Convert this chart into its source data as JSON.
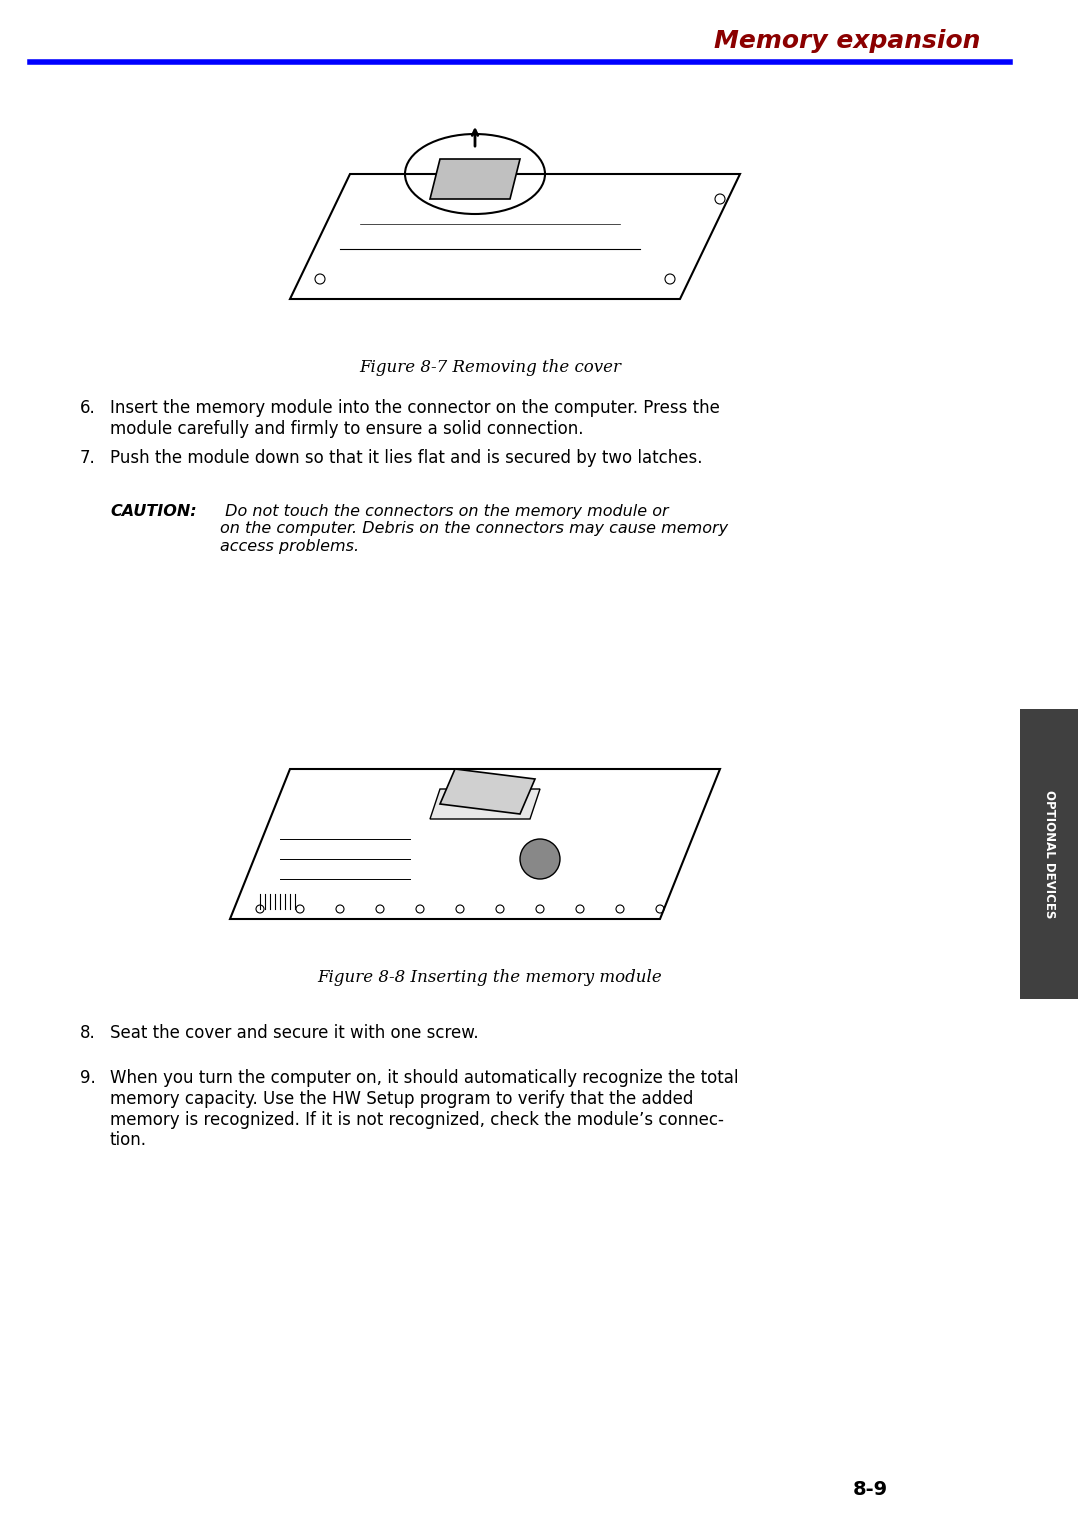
{
  "title": "Memory expansion",
  "title_color": "#8B0000",
  "title_fontsize": 18,
  "line_color": "#0000FF",
  "page_number": "8-9",
  "bg_color": "#FFFFFF",
  "figure1_caption": "Figure 8-7 Removing the cover",
  "figure2_caption": "Figure 8-8 Inserting the memory module",
  "items": [
    {
      "num": "6.",
      "text": "Insert the memory module into the connector on the computer. Press the\nmodule carefully and firmly to ensure a solid connection."
    },
    {
      "num": "7.",
      "text": "Push the module down so that it lies flat and is secured by two latches."
    }
  ],
  "caution_bold": "CAUTION:",
  "caution_italic": " Do not touch the connectors on the memory module or\non the computer. Debris on the connectors may cause memory\naccess problems.",
  "items2": [
    {
      "num": "8.",
      "text": "Seat the cover and secure it with one screw."
    },
    {
      "num": "9.",
      "text": "When you turn the computer on, it should automatically recognize the total\nmemory capacity. Use the HW Setup program to verify that the added\nmemory is recognized. If it is not recognized, check the module’s connec-\ntion."
    }
  ],
  "sidebar_text": "OPTIONAL DEVICES",
  "sidebar_bg": "#333333",
  "sidebar_text_color": "#FFFFFF"
}
